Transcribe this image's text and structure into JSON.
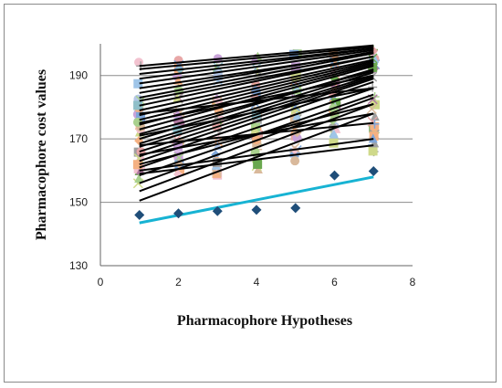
{
  "chart_data": {
    "type": "scatter",
    "title": "",
    "xlabel": "Pharmacophore Hypotheses",
    "ylabel": "Pharmacophore cost values",
    "xlim": [
      0,
      8
    ],
    "ylim": [
      130,
      200
    ],
    "xticks": [
      "0",
      "2",
      "4",
      "6",
      "8"
    ],
    "yticks": [
      "130",
      "150",
      "170",
      "190"
    ],
    "grid": "horizontal",
    "legend": "none",
    "series": [
      {
        "points": [
          [
            1,
            146
          ],
          [
            2,
            146.5
          ],
          [
            3,
            147.2
          ],
          [
            4,
            147.6
          ],
          [
            5,
            148.2
          ],
          [
            6,
            158.5
          ],
          [
            7,
            159.8
          ]
        ],
        "marker": "diamond",
        "color": "#1f4e79",
        "trendline": [
          [
            1,
            143.5
          ],
          [
            7,
            158
          ]
        ],
        "trend_color": "#17b3d3"
      }
    ],
    "background_markers": {
      "colors": [
        "#e8a7a7",
        "#f4b183",
        "#9fc5e8",
        "#a9d18e",
        "#c9a3d9",
        "#8fbfc9",
        "#f2c2cf",
        "#b4c7e7",
        "#d9b99b",
        "#cfd98a",
        "#a0a0a0",
        "#7fa6d9",
        "#b07aa1",
        "#6aa84f"
      ],
      "shapes": [
        "square",
        "triangle",
        "circle",
        "cross",
        "x",
        "diamond"
      ]
    },
    "trendlines": [
      [
        150.5,
        178
      ],
      [
        153.5,
        181
      ],
      [
        156,
        183
      ],
      [
        158.5,
        184
      ],
      [
        161,
        186
      ],
      [
        163,
        188
      ],
      [
        164.5,
        189
      ],
      [
        166,
        189.5
      ],
      [
        167.5,
        190
      ],
      [
        168.5,
        191
      ],
      [
        170,
        192
      ],
      [
        171.5,
        191.5
      ],
      [
        173,
        193
      ],
      [
        174.5,
        193.5
      ],
      [
        176,
        194
      ],
      [
        177.5,
        194.5
      ],
      [
        179,
        195
      ],
      [
        180.5,
        196
      ],
      [
        182,
        196
      ],
      [
        183,
        197
      ],
      [
        184.5,
        197.5
      ],
      [
        186,
        197
      ],
      [
        187.5,
        198
      ],
      [
        189,
        198.5
      ],
      [
        190.5,
        198.5
      ],
      [
        192,
        199
      ],
      [
        193,
        199.5
      ],
      [
        165,
        178
      ],
      [
        168,
        175
      ],
      [
        160,
        170
      ],
      [
        162,
        181
      ],
      [
        171,
        186
      ],
      [
        159,
        168
      ],
      [
        175,
        190
      ],
      [
        178,
        186
      ]
    ],
    "trendline_color": "#000000"
  }
}
